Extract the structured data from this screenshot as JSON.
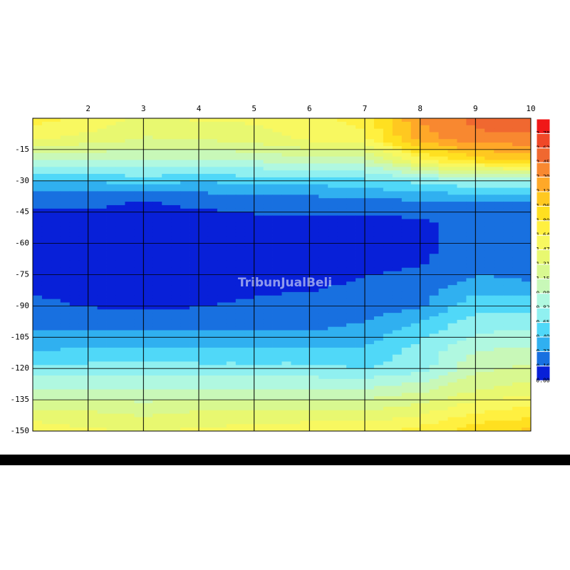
{
  "chart_data": {
    "type": "contour",
    "watermark": "TribunJualBeli",
    "x": [
      1,
      2,
      3,
      4,
      5,
      6,
      7,
      8,
      9,
      10
    ],
    "y": [
      0,
      -10,
      -20,
      -30,
      -40,
      -50,
      -60,
      -70,
      -80,
      -90,
      -100,
      -110,
      -120,
      -130,
      -140,
      -150
    ],
    "z": [
      [
        1.7,
        1.6,
        1.4,
        1.5,
        1.5,
        1.6,
        1.7,
        2.3,
        2.5,
        2.6
      ],
      [
        1.5,
        1.4,
        1.3,
        1.3,
        1.4,
        1.5,
        1.6,
        2.2,
        2.4,
        2.4
      ],
      [
        1.0,
        1.0,
        1.0,
        1.0,
        1.0,
        1.1,
        1.1,
        1.6,
        1.9,
        2.0
      ],
      [
        0.5,
        0.5,
        0.55,
        0.5,
        0.55,
        0.55,
        0.6,
        0.7,
        0.8,
        0.8
      ],
      [
        0.2,
        0.2,
        0.15,
        0.2,
        0.25,
        0.25,
        0.3,
        0.3,
        0.3,
        0.3
      ],
      [
        0.1,
        0.1,
        0.08,
        0.08,
        0.1,
        0.1,
        0.1,
        0.12,
        0.25,
        0.25
      ],
      [
        0.1,
        0.05,
        0.05,
        0.05,
        0.05,
        0.05,
        0.05,
        0.12,
        0.22,
        0.22
      ],
      [
        0.1,
        0.05,
        0.05,
        0.05,
        0.05,
        0.05,
        0.1,
        0.15,
        0.25,
        0.25
      ],
      [
        0.12,
        0.1,
        0.08,
        0.08,
        0.1,
        0.12,
        0.2,
        0.25,
        0.4,
        0.35
      ],
      [
        0.2,
        0.15,
        0.12,
        0.15,
        0.2,
        0.25,
        0.25,
        0.3,
        0.6,
        0.6
      ],
      [
        0.3,
        0.3,
        0.3,
        0.3,
        0.3,
        0.3,
        0.35,
        0.55,
        0.75,
        0.8
      ],
      [
        0.45,
        0.5,
        0.5,
        0.5,
        0.5,
        0.5,
        0.5,
        0.7,
        0.95,
        1.0
      ],
      [
        0.7,
        0.7,
        0.75,
        0.7,
        0.7,
        0.7,
        0.65,
        0.75,
        1.1,
        1.2
      ],
      [
        1.0,
        1.0,
        1.0,
        1.0,
        1.0,
        1.0,
        1.0,
        1.1,
        1.3,
        1.4
      ],
      [
        1.3,
        1.3,
        1.25,
        1.3,
        1.3,
        1.3,
        1.3,
        1.4,
        1.6,
        1.7
      ],
      [
        1.6,
        1.5,
        1.45,
        1.5,
        1.55,
        1.6,
        1.6,
        1.7,
        1.9,
        2.0
      ]
    ],
    "xlim": [
      1,
      10
    ],
    "ylim": [
      -150,
      0
    ],
    "xticks": [
      2,
      3,
      4,
      5,
      6,
      7,
      8,
      9,
      10
    ],
    "yticks": [
      -15,
      -30,
      -45,
      -60,
      -75,
      -90,
      -105,
      -120,
      -135,
      -150
    ],
    "levels": [
      2.78,
      2.62,
      2.45,
      2.29,
      2.13,
      1.96,
      {
        "value": 1.8,
        "label": "1.80"
      },
      1.64,
      1.47,
      1.31,
      1.15,
      0.98,
      0.82,
      0.65,
      0.49,
      0.33,
      0.16,
      {
        "value": 0,
        "label": "0.00"
      }
    ],
    "colors": [
      "#f01818",
      "#f04828",
      "#f06830",
      "#f88830",
      "#ffa828",
      "#ffc820",
      "#ffe020",
      "#fff040",
      "#f8f860",
      "#e8f870",
      "#d8f890",
      "#c8f8b8",
      "#b0f8e0",
      "#90f0f0",
      "#50d8f8",
      "#30b0f0",
      "#1870e0",
      "#0820d8"
    ]
  }
}
